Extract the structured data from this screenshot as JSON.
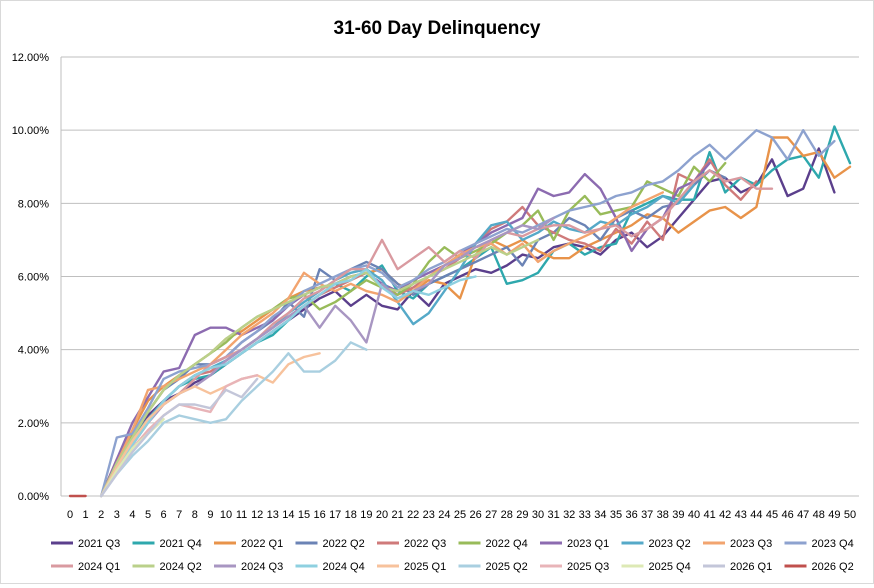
{
  "chart_data": {
    "type": "line",
    "title": "31-60 Day Delinquency",
    "xlabel": "",
    "ylabel": "",
    "x": [
      0,
      1,
      2,
      3,
      4,
      5,
      6,
      7,
      8,
      9,
      10,
      11,
      12,
      13,
      14,
      15,
      16,
      17,
      18,
      19,
      20,
      21,
      22,
      23,
      24,
      25,
      26,
      27,
      28,
      29,
      30,
      31,
      32,
      33,
      34,
      35,
      36,
      37,
      38,
      39,
      40,
      41,
      42,
      43,
      44,
      45,
      46,
      47,
      48,
      49,
      50
    ],
    "y_ticks": [
      "0.00%",
      "2.00%",
      "4.00%",
      "6.00%",
      "8.00%",
      "10.00%",
      "12.00%"
    ],
    "ylim": [
      0,
      12
    ],
    "grid": "horizontal",
    "legend_position": "bottom",
    "series": [
      {
        "name": "2021 Q3",
        "color": "#5b3f8c",
        "values": [
          null,
          null,
          0,
          0.9,
          1.7,
          2.2,
          2.6,
          2.8,
          3.1,
          3.3,
          3.6,
          3.9,
          4.2,
          4.5,
          4.8,
          5.1,
          5.4,
          5.6,
          5.2,
          5.5,
          5.2,
          5.1,
          5.6,
          5.2,
          5.8,
          6.0,
          6.2,
          6.1,
          6.3,
          6.6,
          6.5,
          6.8,
          6.9,
          6.8,
          6.6,
          7.0,
          7.2,
          6.8,
          7.1,
          7.6,
          8.1,
          8.6,
          8.7,
          8.3,
          8.5,
          9.2,
          8.2,
          8.4,
          9.5,
          8.3,
          null
        ]
      },
      {
        "name": "2021 Q4",
        "color": "#2ea8ad",
        "values": [
          null,
          null,
          0,
          0.9,
          1.6,
          2.1,
          2.6,
          3.0,
          3.2,
          3.3,
          3.6,
          3.9,
          4.2,
          4.4,
          4.8,
          5.2,
          5.5,
          5.8,
          5.6,
          6.0,
          6.3,
          5.6,
          5.4,
          5.8,
          6.0,
          6.2,
          6.5,
          6.8,
          5.8,
          5.9,
          6.1,
          6.7,
          6.9,
          6.6,
          6.8,
          6.9,
          7.8,
          8.0,
          8.2,
          8.1,
          8.1,
          9.4,
          8.3,
          8.7,
          8.5,
          8.9,
          9.2,
          9.3,
          8.7,
          10.1,
          9.1
        ]
      },
      {
        "name": "2022 Q1",
        "color": "#e8934a",
        "values": [
          null,
          null,
          0,
          1.0,
          1.8,
          2.6,
          3.0,
          3.3,
          3.6,
          3.9,
          4.3,
          4.5,
          4.8,
          5.1,
          5.4,
          5.6,
          5.7,
          5.8,
          6.0,
          6.1,
          6.2,
          5.8,
          5.6,
          5.9,
          5.8,
          5.4,
          6.6,
          7.0,
          6.8,
          7.0,
          6.7,
          6.5,
          6.5,
          6.8,
          7.0,
          7.2,
          7.4,
          7.7,
          7.6,
          7.2,
          7.5,
          7.8,
          7.9,
          7.6,
          7.9,
          9.8,
          9.8,
          9.3,
          9.4,
          8.7,
          9.0
        ]
      },
      {
        "name": "2022 Q2",
        "color": "#6b83b5",
        "values": [
          null,
          null,
          0,
          0.8,
          1.6,
          2.3,
          2.9,
          3.2,
          3.6,
          3.6,
          3.8,
          4.2,
          4.5,
          4.8,
          5.3,
          4.9,
          6.2,
          5.9,
          6.2,
          6.4,
          6.2,
          5.8,
          5.5,
          5.8,
          6.0,
          6.2,
          6.4,
          6.6,
          6.8,
          6.3,
          7.0,
          7.2,
          7.6,
          7.4,
          7.0,
          7.6,
          7.8,
          7.6,
          7.9,
          8.0,
          8.5,
          8.9,
          8.7,
          null,
          null,
          null,
          null,
          null,
          null,
          null,
          null
        ]
      },
      {
        "name": "2022 Q3",
        "color": "#cf7a7a",
        "values": [
          null,
          null,
          0,
          0.8,
          1.5,
          2.1,
          2.6,
          3.0,
          3.3,
          3.4,
          3.7,
          4.0,
          4.3,
          4.6,
          4.9,
          5.2,
          5.5,
          5.7,
          5.9,
          6.1,
          5.8,
          5.5,
          5.7,
          6.0,
          6.2,
          6.5,
          6.9,
          7.3,
          7.5,
          7.9,
          7.4,
          7.2,
          7.0,
          6.9,
          6.7,
          7.3,
          6.9,
          7.5,
          7.0,
          8.8,
          8.6,
          9.2,
          8.5,
          8.1,
          8.6,
          null,
          null,
          null,
          null,
          null,
          null
        ]
      },
      {
        "name": "2022 Q4",
        "color": "#98bb5a",
        "values": [
          null,
          null,
          0,
          0.9,
          1.7,
          2.3,
          2.9,
          3.3,
          3.6,
          3.9,
          4.2,
          4.6,
          4.9,
          5.1,
          5.4,
          5.5,
          5.1,
          5.3,
          5.6,
          5.9,
          5.7,
          5.5,
          5.8,
          6.4,
          6.8,
          6.5,
          6.7,
          6.9,
          7.2,
          7.4,
          7.8,
          7.0,
          7.8,
          8.2,
          7.7,
          7.8,
          7.9,
          8.6,
          8.4,
          8.2,
          9.0,
          8.6,
          9.1,
          null,
          null,
          null,
          null,
          null,
          null,
          null,
          null
        ]
      },
      {
        "name": "2023 Q1",
        "color": "#8c6bb0",
        "values": [
          null,
          null,
          0,
          1.0,
          2.0,
          2.7,
          3.4,
          3.5,
          4.4,
          4.6,
          4.6,
          4.4,
          4.6,
          4.8,
          5.2,
          5.5,
          5.7,
          5.8,
          6.0,
          6.1,
          5.8,
          5.6,
          5.9,
          6.1,
          6.3,
          6.6,
          6.9,
          7.2,
          7.4,
          7.6,
          8.4,
          8.2,
          8.3,
          8.8,
          8.4,
          7.6,
          6.7,
          7.3,
          7.6,
          8.4,
          8.6,
          9.1,
          null,
          null,
          null,
          null,
          null,
          null,
          null,
          null,
          null
        ]
      },
      {
        "name": "2023 Q2",
        "color": "#55a9c8",
        "values": [
          null,
          null,
          0,
          0.8,
          1.5,
          2.1,
          2.6,
          3.0,
          3.3,
          3.5,
          3.7,
          4.0,
          4.3,
          4.6,
          5.0,
          5.3,
          5.6,
          5.9,
          6.1,
          6.2,
          5.9,
          5.3,
          4.7,
          5.0,
          5.6,
          6.2,
          6.9,
          7.4,
          7.5,
          7.0,
          7.2,
          7.5,
          7.3,
          7.2,
          7.5,
          7.4,
          7.7,
          7.9,
          8.2,
          8.0,
          8.5,
          null,
          null,
          null,
          null,
          null,
          null,
          null,
          null,
          null,
          null
        ]
      },
      {
        "name": "2023 Q3",
        "color": "#f2a46f",
        "values": [
          null,
          null,
          0,
          0.9,
          1.8,
          2.9,
          3.0,
          3.2,
          3.4,
          3.6,
          4.0,
          4.4,
          4.7,
          5.0,
          5.4,
          6.1,
          5.8,
          5.6,
          5.8,
          5.6,
          5.5,
          5.3,
          5.6,
          6.0,
          6.3,
          6.6,
          6.8,
          6.9,
          6.6,
          6.9,
          6.4,
          6.7,
          6.9,
          7.1,
          7.3,
          7.6,
          7.9,
          8.1,
          8.3,
          null,
          null,
          null,
          null,
          null,
          null,
          null,
          null,
          null,
          null,
          null,
          null
        ]
      },
      {
        "name": "2023 Q4",
        "color": "#8da2cf",
        "values": [
          null,
          null,
          0,
          1.6,
          1.7,
          2.4,
          3.2,
          3.4,
          3.5,
          3.6,
          3.8,
          4.2,
          4.5,
          4.9,
          5.2,
          5.6,
          5.8,
          6.0,
          6.2,
          6.3,
          6.1,
          5.7,
          5.9,
          6.2,
          6.4,
          6.7,
          6.9,
          7.1,
          7.3,
          7.2,
          7.4,
          7.6,
          7.8,
          7.9,
          8.0,
          8.2,
          8.3,
          8.5,
          8.6,
          8.9,
          9.3,
          9.6,
          9.2,
          9.6,
          10.0,
          9.8,
          9.2,
          10.0,
          9.3,
          9.7,
          null
        ]
      },
      {
        "name": "2024 Q1",
        "color": "#d99aa0",
        "values": [
          null,
          null,
          0,
          0.8,
          1.4,
          2.0,
          2.5,
          2.8,
          3.2,
          3.6,
          3.8,
          4.0,
          4.3,
          4.7,
          5.0,
          5.4,
          5.6,
          5.9,
          6.2,
          6.2,
          7.0,
          6.2,
          6.5,
          6.8,
          6.4,
          6.7,
          6.5,
          7.0,
          7.2,
          7.1,
          7.3,
          7.4,
          7.4,
          7.2,
          7.3,
          7.4,
          7.1,
          7.3,
          7.6,
          8.1,
          8.6,
          8.9,
          8.6,
          8.7,
          8.4,
          8.4,
          null,
          null,
          null,
          null,
          null
        ]
      },
      {
        "name": "2024 Q2",
        "color": "#bad08a",
        "values": [
          null,
          null,
          0,
          0.9,
          1.6,
          2.3,
          2.9,
          3.3,
          3.6,
          3.9,
          4.3,
          4.6,
          4.9,
          5.1,
          5.3,
          5.5,
          5.7,
          5.8,
          6.0,
          6.1,
          5.7,
          5.6,
          5.8,
          6.0,
          6.2,
          6.4,
          6.6,
          6.8,
          6.6,
          6.8,
          7.0,
          null,
          null,
          null,
          null,
          null,
          null,
          null,
          null,
          null,
          null,
          null,
          null,
          null,
          null,
          null,
          null,
          null,
          null,
          null,
          null
        ]
      },
      {
        "name": "2024 Q3",
        "color": "#a896c2",
        "values": [
          null,
          null,
          0,
          0.7,
          1.4,
          2.0,
          2.5,
          2.8,
          3.0,
          3.3,
          3.7,
          4.0,
          4.3,
          4.6,
          4.9,
          5.2,
          4.6,
          5.2,
          4.8,
          4.2,
          5.8,
          5.4,
          5.6,
          5.8,
          6.3,
          6.5,
          6.8,
          7.0,
          7.2,
          7.4,
          7.3,
          7.6,
          null,
          null,
          null,
          null,
          null,
          null,
          null,
          null,
          null,
          null,
          null,
          null,
          null,
          null,
          null,
          null,
          null,
          null,
          null
        ]
      },
      {
        "name": "2024 Q4",
        "color": "#8ed0e0",
        "values": [
          null,
          null,
          0,
          0.7,
          1.4,
          2.0,
          2.6,
          3.0,
          3.3,
          3.5,
          3.6,
          3.9,
          4.2,
          4.5,
          4.8,
          5.2,
          5.5,
          5.8,
          5.9,
          6.2,
          5.7,
          5.4,
          5.6,
          5.5,
          5.7,
          5.9,
          6.0,
          null,
          null,
          null,
          null,
          null,
          null,
          null,
          null,
          null,
          null,
          null,
          null,
          null,
          null,
          null,
          null,
          null,
          null,
          null,
          null,
          null,
          null,
          null,
          null
        ]
      },
      {
        "name": "2025 Q1",
        "color": "#f7c29c",
        "values": [
          null,
          null,
          0,
          0.8,
          1.5,
          2.1,
          2.5,
          2.8,
          3.0,
          2.8,
          3.0,
          3.2,
          3.3,
          3.1,
          3.6,
          3.8,
          3.9,
          null,
          null,
          null,
          null,
          null,
          null,
          null,
          null,
          null,
          null,
          null,
          null,
          null,
          null,
          null,
          null,
          null,
          null,
          null,
          null,
          null,
          null,
          null,
          null,
          null,
          null,
          null,
          null,
          null,
          null,
          null,
          null,
          null,
          null
        ]
      },
      {
        "name": "2025 Q2",
        "color": "#a9cfe0",
        "values": [
          null,
          null,
          0,
          0.6,
          1.1,
          1.5,
          2.0,
          2.2,
          2.1,
          2.0,
          2.1,
          2.6,
          3.0,
          3.4,
          3.9,
          3.4,
          3.4,
          3.7,
          4.2,
          4.0,
          null,
          null,
          null,
          null,
          null,
          null,
          null,
          null,
          null,
          null,
          null,
          null,
          null,
          null,
          null,
          null,
          null,
          null,
          null,
          null,
          null,
          null,
          null,
          null,
          null,
          null,
          null,
          null,
          null,
          null,
          null
        ]
      },
      {
        "name": "2025 Q3",
        "color": "#e8b4b8",
        "values": [
          null,
          null,
          0,
          0.7,
          1.3,
          1.8,
          2.2,
          2.5,
          2.4,
          2.3,
          3.0,
          3.2,
          3.3,
          null,
          null,
          null,
          null,
          null,
          null,
          null,
          null,
          null,
          null,
          null,
          null,
          null,
          null,
          null,
          null,
          null,
          null,
          null,
          null,
          null,
          null,
          null,
          null,
          null,
          null,
          null,
          null,
          null,
          null,
          null,
          null,
          null,
          null,
          null,
          null,
          null,
          null
        ]
      },
      {
        "name": "2025 Q4",
        "color": "#dde9b5",
        "values": [
          null,
          null,
          0,
          0.7,
          1.3,
          1.7,
          2.1,
          null,
          null,
          null,
          null,
          null,
          null,
          null,
          null,
          null,
          null,
          null,
          null,
          null,
          null,
          null,
          null,
          null,
          null,
          null,
          null,
          null,
          null,
          null,
          null,
          null,
          null,
          null,
          null,
          null,
          null,
          null,
          null,
          null,
          null,
          null,
          null,
          null,
          null,
          null,
          null,
          null,
          null,
          null,
          null
        ]
      },
      {
        "name": "2026 Q1",
        "color": "#c3c6d9",
        "values": [
          null,
          null,
          0,
          0.6,
          1.2,
          1.7,
          2.2,
          2.5,
          2.5,
          2.4,
          2.9,
          2.7,
          3.2,
          null,
          null,
          null,
          null,
          null,
          null,
          null,
          null,
          null,
          null,
          null,
          null,
          null,
          null,
          null,
          null,
          null,
          null,
          null,
          null,
          null,
          null,
          null,
          null,
          null,
          null,
          null,
          null,
          null,
          null,
          null,
          null,
          null,
          null,
          null,
          null,
          null,
          null
        ]
      },
      {
        "name": "2026 Q2",
        "color": "#c0504d",
        "values": [
          0,
          0,
          null,
          null,
          null,
          null,
          null,
          null,
          null,
          null,
          null,
          null,
          null,
          null,
          null,
          null,
          null,
          null,
          null,
          null,
          null,
          null,
          null,
          null,
          null,
          null,
          null,
          null,
          null,
          null,
          null,
          null,
          null,
          null,
          null,
          null,
          null,
          null,
          null,
          null,
          null,
          null,
          null,
          null,
          null,
          null,
          null,
          null,
          null,
          null,
          null
        ]
      }
    ]
  }
}
